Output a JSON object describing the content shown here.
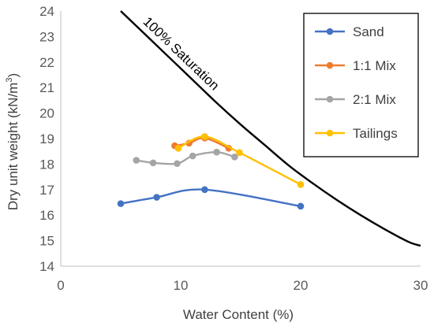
{
  "chart_data": {
    "type": "line",
    "xlabel": "Water Content (%)",
    "ylabel_main": "Dry unit weight (kN/m",
    "ylabel_sup": "3",
    "ylabel_end": ")",
    "xlim": [
      0,
      30
    ],
    "ylim": [
      14,
      24
    ],
    "x_ticks": [
      "0",
      "10",
      "20",
      "30"
    ],
    "y_ticks": [
      "14",
      "15",
      "16",
      "17",
      "18",
      "19",
      "20",
      "21",
      "22",
      "23",
      "24"
    ],
    "grid": false,
    "legend_position": "top-right",
    "saturation_curve": {
      "label": "100% Saturation",
      "color": "#000000",
      "points": [
        {
          "x": 5.0,
          "y": 24.0
        },
        {
          "x": 7.0,
          "y": 23.1
        },
        {
          "x": 9.0,
          "y": 22.2
        },
        {
          "x": 11.0,
          "y": 21.3
        },
        {
          "x": 13.0,
          "y": 20.4
        },
        {
          "x": 15.0,
          "y": 19.55
        },
        {
          "x": 17.0,
          "y": 18.75
        },
        {
          "x": 19.0,
          "y": 17.95
        },
        {
          "x": 21.0,
          "y": 17.25
        },
        {
          "x": 23.0,
          "y": 16.6
        },
        {
          "x": 25.0,
          "y": 16.0
        },
        {
          "x": 27.0,
          "y": 15.45
        },
        {
          "x": 29.0,
          "y": 14.95
        },
        {
          "x": 30.0,
          "y": 14.8
        }
      ]
    },
    "series": [
      {
        "name": "Sand",
        "color": "#4472C4",
        "points": [
          {
            "x": 5.0,
            "y": 16.45
          },
          {
            "x": 8.0,
            "y": 16.7
          },
          {
            "x": 12.0,
            "y": 17.0
          },
          {
            "x": 20.0,
            "y": 16.35
          }
        ]
      },
      {
        "name": "1:1 Mix",
        "color": "#ED7D31",
        "points": [
          {
            "x": 9.5,
            "y": 18.72
          },
          {
            "x": 10.7,
            "y": 18.82
          },
          {
            "x": 12.0,
            "y": 19.02
          },
          {
            "x": 14.0,
            "y": 18.62
          }
        ]
      },
      {
        "name": "2:1 Mix",
        "color": "#A5A5A5",
        "points": [
          {
            "x": 6.3,
            "y": 18.15
          },
          {
            "x": 7.7,
            "y": 18.05
          },
          {
            "x": 9.7,
            "y": 18.02
          },
          {
            "x": 11.0,
            "y": 18.32
          },
          {
            "x": 13.0,
            "y": 18.47
          },
          {
            "x": 14.5,
            "y": 18.28
          }
        ]
      },
      {
        "name": "Tailings",
        "color": "#FFC000",
        "points": [
          {
            "x": 9.8,
            "y": 18.62
          },
          {
            "x": 12.0,
            "y": 19.08
          },
          {
            "x": 14.9,
            "y": 18.45
          },
          {
            "x": 20.0,
            "y": 17.2
          }
        ]
      }
    ]
  }
}
